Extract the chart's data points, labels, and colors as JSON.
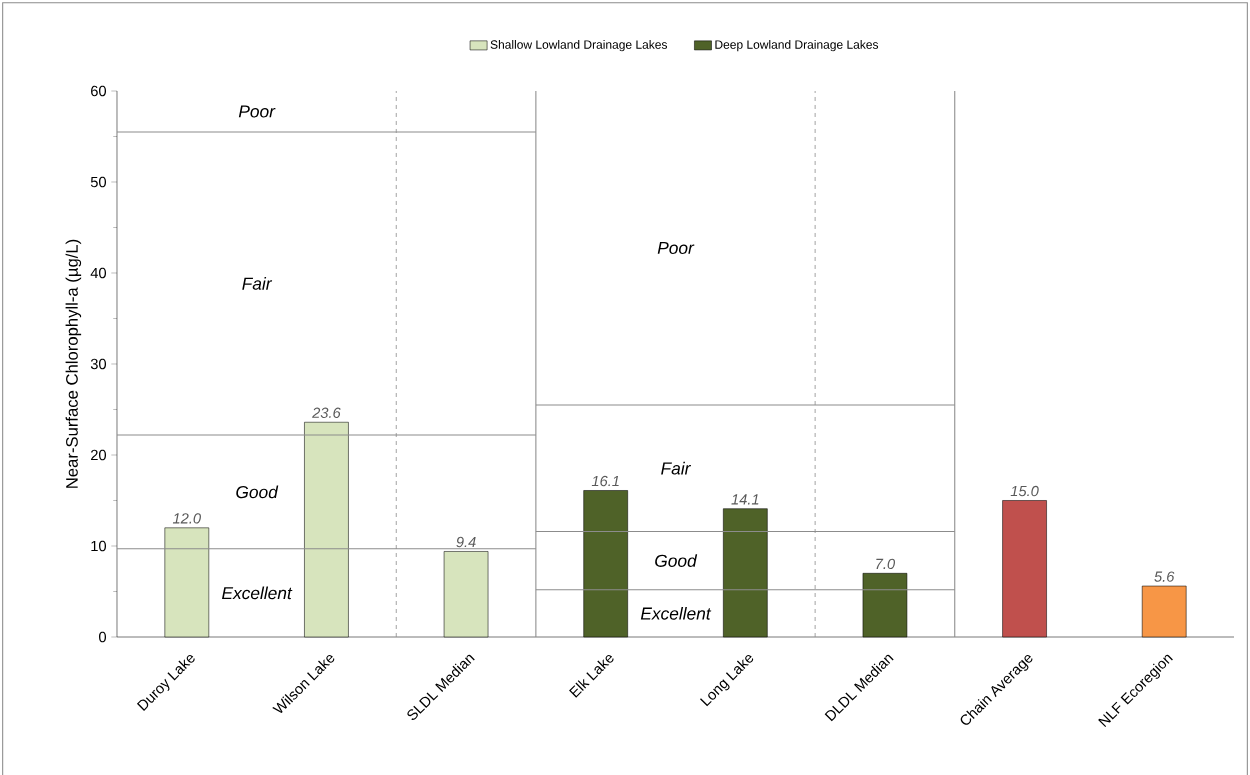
{
  "chart_data": {
    "type": "bar",
    "ylabel": "Near-Surface  Chlorophyll-a  (µg/L)",
    "categories": [
      "Duroy Lake",
      "Wilson Lake",
      "SLDL Median",
      "Elk Lake",
      "Long Lake",
      "DLDL Median",
      "Chain Average",
      "NLF Ecoregion"
    ],
    "series": [
      {
        "name": "Shallow Lowland Drainage Lakes",
        "color": "#d7e4bd",
        "values": [
          12.0,
          23.6,
          9.4,
          null,
          null,
          null,
          null,
          null
        ],
        "value_labels": [
          "12.0",
          "23.6",
          "9.4",
          null,
          null,
          null,
          null,
          null
        ]
      },
      {
        "name": "Deep Lowland Drainage Lakes",
        "color": "#4f6228",
        "values": [
          null,
          null,
          null,
          16.1,
          14.1,
          7.0,
          null,
          null
        ],
        "value_labels": [
          null,
          null,
          null,
          "16.1",
          "14.1",
          "7.0",
          null,
          null
        ]
      },
      {
        "colors": [
          null,
          null,
          null,
          null,
          null,
          null,
          "#c0504d",
          "#f79646"
        ],
        "values": [
          null,
          null,
          null,
          null,
          null,
          null,
          15.0,
          5.6
        ],
        "value_labels": [
          null,
          null,
          null,
          null,
          null,
          null,
          "15.0",
          "5.6"
        ]
      }
    ],
    "ylim": [
      0,
      60
    ],
    "yticks": [
      0,
      10,
      20,
      30,
      40,
      50,
      60
    ],
    "legend": "top",
    "ref_lines": [
      {
        "axis": "y",
        "value": 55.5,
        "color": "#8c8c8c"
      },
      {
        "axis": "y",
        "value": 22.2,
        "color": "#8c8c8c"
      },
      {
        "axis": "y",
        "value": 9.7,
        "color": "#8c8c8c"
      },
      {
        "axis": "y",
        "value": 25.5,
        "color": "#8c8c8c"
      },
      {
        "axis": "y",
        "value": 11.6,
        "color": "#8c8c8c"
      },
      {
        "axis": "y",
        "value": 5.2,
        "color": "#8c8c8c"
      }
    ],
    "annotations": [
      "Poor",
      "Fair",
      "Good",
      "Excellent",
      "Poor",
      "Fair",
      "Good",
      "Excellent"
    ]
  }
}
